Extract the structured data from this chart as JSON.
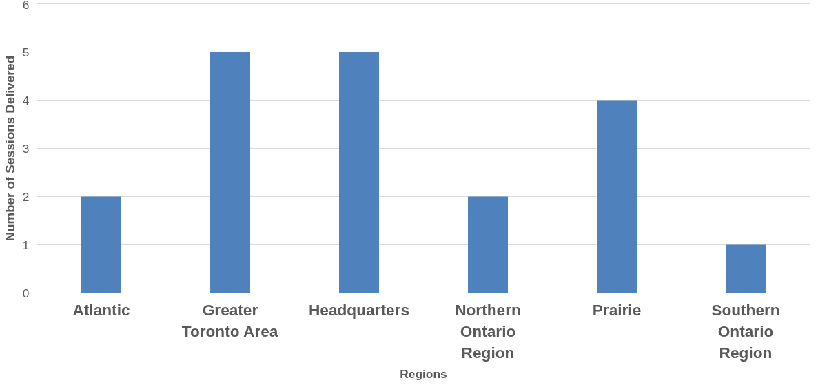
{
  "chart_data": {
    "type": "bar",
    "categories": [
      "Atlantic",
      "Greater Toronto Area",
      "Headquarters",
      "Northern Ontario Region",
      "Prairie",
      "Southern Ontario Region"
    ],
    "values": [
      2,
      5,
      5,
      2,
      4,
      1
    ],
    "color": "#4f81bd",
    "xlabel": "Regions",
    "ylabel": "Number of Sessions Delivered",
    "ylim": [
      0,
      6
    ],
    "yticks": [
      0,
      1,
      2,
      3,
      4,
      5,
      6
    ],
    "grid": "y"
  }
}
